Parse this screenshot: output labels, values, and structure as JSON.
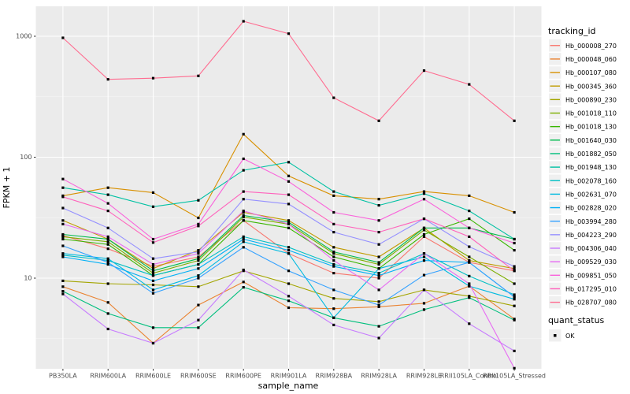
{
  "legend": {
    "tracking_title": "tracking_id",
    "quant_title": "quant_status",
    "quant_items": [
      "OK"
    ]
  },
  "chart_data": {
    "type": "line",
    "title": "",
    "xlabel": "sample_name",
    "ylabel": "FPKM + 1",
    "y_scale": "log10",
    "y_ticks": [
      10,
      100,
      1000
    ],
    "ylim": [
      1.8,
      1770
    ],
    "grid": true,
    "legend_position": "right",
    "point_marker": "black-square",
    "categories": [
      "PB350LA",
      "RRIM600LA",
      "RRIM600LE",
      "RRIM600SE",
      "RRIM600PE",
      "RRIM901LA",
      "RRIM928BA",
      "RRIM928LA",
      "RRIM928LE",
      "RRII105LA_Control",
      "RRII105LA_Stressed"
    ],
    "series": [
      {
        "name": "Hb_000008_270",
        "color": "#F8766D",
        "values": [
          22.5,
          17.5,
          12.5,
          15,
          30,
          16,
          11,
          10,
          22,
          13.5,
          11.5
        ]
      },
      {
        "name": "Hb_000048_060",
        "color": "#EA8331",
        "values": [
          8.5,
          6.3,
          2.9,
          6.0,
          9.3,
          5.7,
          5.6,
          5.8,
          6.2,
          8.6,
          4.6
        ]
      },
      {
        "name": "Hb_000107_080",
        "color": "#D89000",
        "values": [
          48,
          56,
          51,
          31.5,
          155,
          70,
          48,
          45,
          52,
          48,
          35
        ]
      },
      {
        "name": "Hb_000345_360",
        "color": "#C09B00",
        "values": [
          30,
          21,
          12,
          17,
          35,
          30,
          18,
          15,
          26,
          14,
          12
        ]
      },
      {
        "name": "Hb_000890_230",
        "color": "#A3A500",
        "values": [
          9.5,
          9.0,
          8.8,
          8.5,
          11.5,
          9.0,
          6.8,
          6.4,
          8.0,
          7.1,
          5.9
        ]
      },
      {
        "name": "Hb_001018_110",
        "color": "#7CAE00",
        "values": [
          22,
          20,
          11,
          14,
          32,
          28,
          16,
          13,
          25,
          15,
          9
        ]
      },
      {
        "name": "Hb_001018_130",
        "color": "#39B600",
        "values": [
          21,
          19,
          10.5,
          13,
          30,
          26,
          15,
          12,
          23,
          31,
          17
        ]
      },
      {
        "name": "Hb_001640_030",
        "color": "#00BB4E",
        "values": [
          23,
          21,
          11.5,
          14.5,
          33,
          29,
          16.5,
          13.5,
          26,
          26,
          21
        ]
      },
      {
        "name": "Hb_001882_050",
        "color": "#00BF7D",
        "values": [
          7.8,
          5.1,
          3.9,
          3.9,
          8.4,
          6.5,
          4.7,
          4.0,
          5.5,
          6.9,
          4.5
        ]
      },
      {
        "name": "Hb_001948_130",
        "color": "#00C1A3",
        "values": [
          56,
          49,
          39,
          44,
          78,
          91,
          52,
          40,
          50,
          36,
          21
        ]
      },
      {
        "name": "Hb_002078_160",
        "color": "#00BFC4",
        "values": [
          15.5,
          14,
          10.5,
          13,
          22,
          18,
          13,
          11,
          16,
          10.4,
          7.3
        ]
      },
      {
        "name": "Hb_002631_070",
        "color": "#00BAE0",
        "values": [
          16,
          14.5,
          8.0,
          10.5,
          20,
          16,
          4.7,
          12,
          15,
          8.6,
          6.7
        ]
      },
      {
        "name": "Hb_002828_020",
        "color": "#00B0F6",
        "values": [
          15,
          13,
          9.5,
          12,
          21,
          17,
          12.5,
          10.5,
          14,
          13.5,
          7.0
        ]
      },
      {
        "name": "Hb_003994_280",
        "color": "#35A2FF",
        "values": [
          18.5,
          13.5,
          7.5,
          10,
          18,
          11.5,
          8,
          6,
          10.6,
          13.5,
          7.0
        ]
      },
      {
        "name": "Hb_004223_290",
        "color": "#9590FF",
        "values": [
          38,
          26,
          14.5,
          16.5,
          45,
          41,
          24,
          19,
          31,
          18.2,
          12.5
        ]
      },
      {
        "name": "Hb_004306_040",
        "color": "#C77CFF",
        "values": [
          7.4,
          3.8,
          2.9,
          4.5,
          11.7,
          7.1,
          4.1,
          3.2,
          8.0,
          4.2,
          2.5
        ]
      },
      {
        "name": "Hb_009529_030",
        "color": "#E76BF3",
        "values": [
          28,
          22,
          13,
          16,
          36,
          28,
          14,
          8,
          16,
          9,
          1.8
        ]
      },
      {
        "name": "Hb_009851_050",
        "color": "#FA62DB",
        "values": [
          66,
          41.5,
          21,
          28,
          97,
          63,
          35,
          30,
          45,
          26,
          19.5
        ]
      },
      {
        "name": "Hb_017295_010",
        "color": "#FF62BC",
        "values": [
          47,
          36,
          19.7,
          27,
          52,
          49,
          28,
          24,
          31,
          22,
          11.5
        ]
      },
      {
        "name": "Hb_028707_080",
        "color": "#FF6C90",
        "values": [
          970,
          440,
          450,
          470,
          1330,
          1050,
          310,
          200,
          520,
          400,
          200
        ]
      }
    ]
  }
}
